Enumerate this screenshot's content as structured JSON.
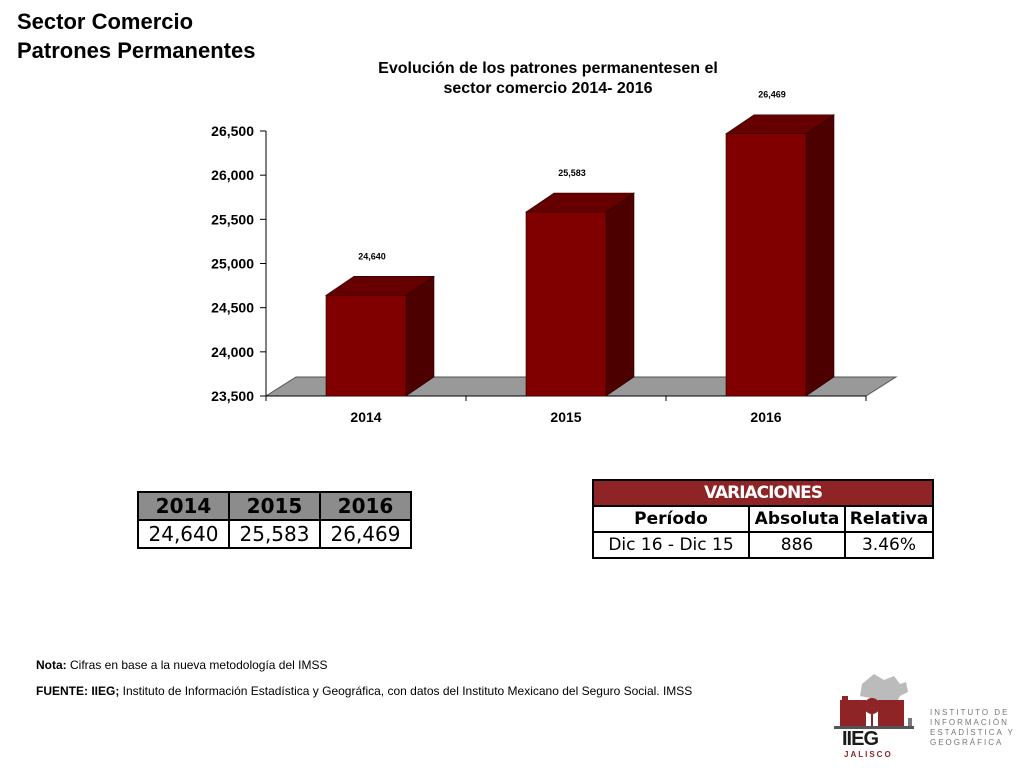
{
  "page": {
    "title_line1": "Sector Comercio",
    "title_line2": "Patrones Permanentes"
  },
  "chart_data": {
    "type": "bar",
    "title_line1": "Evolución de los patrones permanentesen el",
    "title_line2": "sector comercio 2014- 2016",
    "categories": [
      "2014",
      "2015",
      "2016"
    ],
    "values": [
      24640,
      25583,
      26469
    ],
    "data_labels": [
      "24,640",
      "25,583",
      "26,469"
    ],
    "y_ticks": [
      23500,
      24000,
      24500,
      25000,
      25500,
      26000,
      26500
    ],
    "y_tick_labels": [
      "23,500",
      "24,000",
      "24,500",
      "25,000",
      "25,500",
      "26,000",
      "26,500"
    ],
    "ylim": [
      23500,
      26500
    ],
    "xlabel": "",
    "ylabel": "",
    "grid": false,
    "legend": false,
    "style": "3d-bar",
    "colors": {
      "bar_front": "#800000",
      "bar_side": "#4d0000",
      "bar_top": "#660000",
      "floor": "#999999"
    }
  },
  "years_table": {
    "headers": [
      "2014",
      "2015",
      "2016"
    ],
    "values": [
      "24,640",
      "25,583",
      "26,469"
    ]
  },
  "variations_table": {
    "title": "VARIACIONES",
    "headers": [
      "Período",
      "Absoluta",
      "Relativa"
    ],
    "row": [
      "Dic 16 - Dic 15",
      "886",
      "3.46%"
    ]
  },
  "footer": {
    "note_label": "Nota:",
    "note_text": " Cifras en base a la nueva metodología del IMSS",
    "source_label": "FUENTE: IIEG;",
    "source_text": " Instituto de Información Estadística y Geográfica, con datos del Instituto Mexicano del Seguro Social. IMSS"
  },
  "logo": {
    "acronym": "IIEG",
    "state": "JALISCO",
    "lines": [
      "INSTITUTO DE",
      "INFORMACIÓN",
      "ESTADÍSTICA Y",
      "GEOGRÁFICA"
    ],
    "brand_color": "#8e2426"
  }
}
